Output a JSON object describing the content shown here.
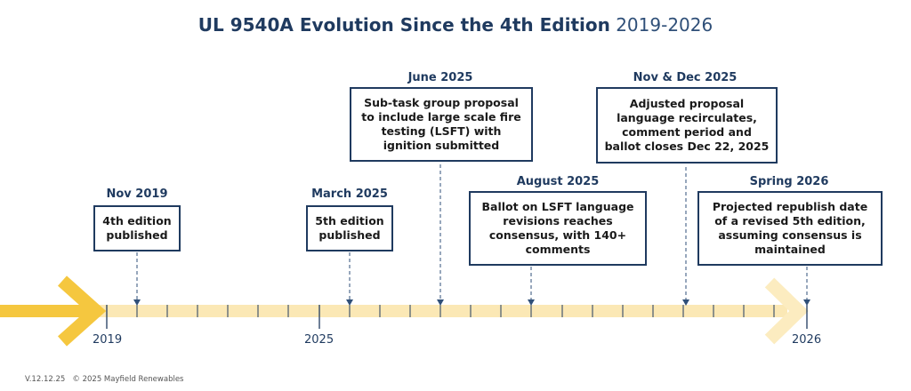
{
  "title": {
    "main": "UL 9540A Evolution Since the 4th Edition",
    "years": "2019-2026"
  },
  "colors": {
    "navy": "#1f3a5f",
    "timeline_light": "#fbe8b5",
    "timeline_dark": "#f5c73f",
    "arrow_end": "#fcecc0"
  },
  "events": [
    {
      "date": "Nov 2019",
      "text": "4th edition published"
    },
    {
      "date": "March 2025",
      "text": "5th edition published"
    },
    {
      "date": "June 2025",
      "text": "Sub-task group proposal to include large scale fire testing (LSFT) with ignition submitted"
    },
    {
      "date": "August 2025",
      "text": "Ballot on LSFT language revisions reaches consensus, with 140+ comments"
    },
    {
      "date": "Nov & Dec 2025",
      "text": "Adjusted proposal language recirculates, comment period and ballot closes Dec 22, 2025"
    },
    {
      "date": "Spring 2026",
      "text": "Projected republish date of a revised 5th edition, assuming consensus is maintained"
    }
  ],
  "axis_labels": [
    "2019",
    "2025",
    "2026"
  ],
  "footer": {
    "version": "V.12.12.25",
    "copyright": "© 2025 Mayfield Renewables"
  }
}
